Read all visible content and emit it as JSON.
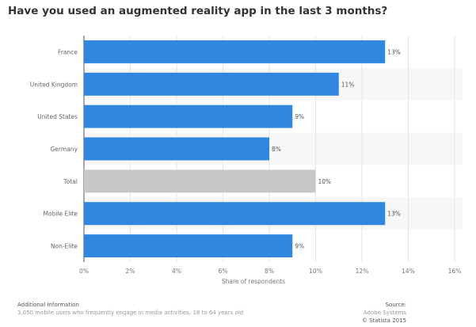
{
  "chart_data": {
    "type": "bar",
    "orientation": "horizontal",
    "title": "Have you used an augmented reality app in the last 3 months?",
    "categories": [
      "France",
      "United Kingdom",
      "United States",
      "Germany",
      "Total",
      "Mobile Elite",
      "Non-Elite"
    ],
    "values": [
      13,
      11,
      9,
      8,
      10,
      13,
      9
    ],
    "data_labels": [
      "13%",
      "11%",
      "9%",
      "8%",
      "10%",
      "13%",
      "9%"
    ],
    "highlight_category": "Total",
    "xlabel": "Share of respondents",
    "ylabel": "",
    "xlim": [
      0,
      16
    ],
    "xticks": [
      "0%",
      "2%",
      "4%",
      "6%",
      "8%",
      "10%",
      "12%",
      "14%",
      "16%"
    ],
    "grid": true,
    "colors": {
      "bar": "#2f87e0",
      "highlight": "#c8c8c8"
    }
  },
  "footer": {
    "info_title": "Additional Information",
    "info_text": "3,050 mobile users who frequently engage in media activities; 18 to 64 years old",
    "source_title": "Source:",
    "source_text": "Adobe Systems",
    "copyright": "© Statista 2015"
  }
}
